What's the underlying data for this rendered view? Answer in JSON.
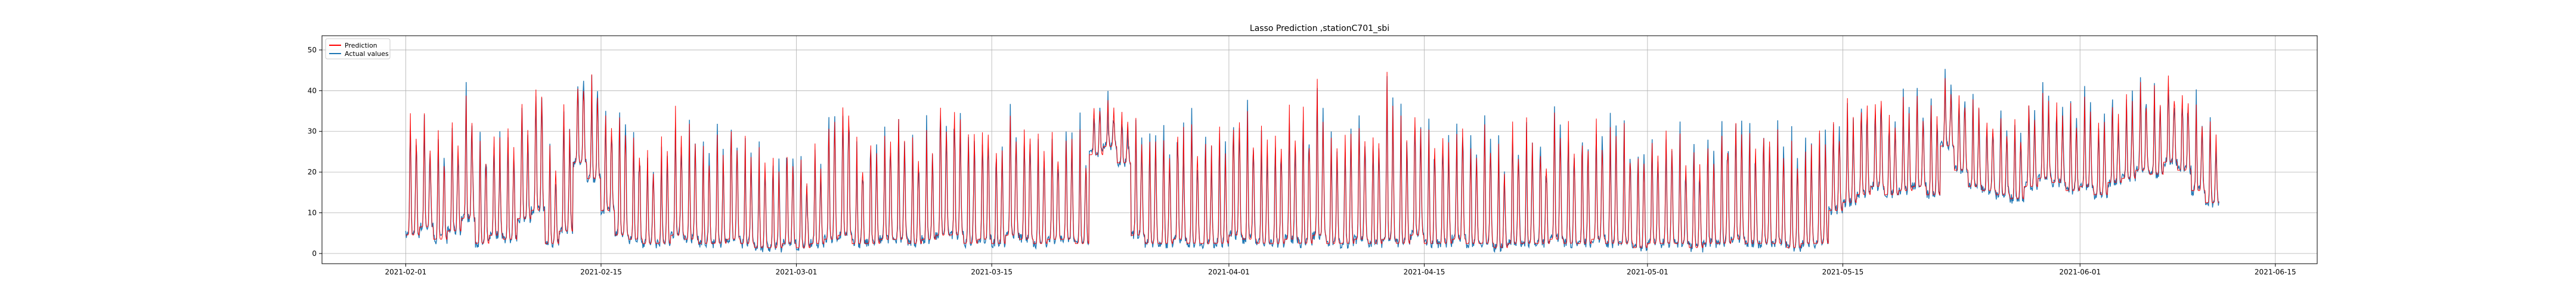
{
  "chart_data": {
    "type": "line",
    "title": "Lasso Prediction ,stationC701_sbi",
    "xlabel": "",
    "ylabel": "",
    "x_range": [
      "2021-01-26",
      "2021-06-18"
    ],
    "ylim": [
      -2.5,
      53.5
    ],
    "x_ticks": [
      "2021-02-01",
      "2021-02-15",
      "2021-03-01",
      "2021-03-15",
      "2021-04-01",
      "2021-04-15",
      "2021-05-01",
      "2021-05-15",
      "2021-06-01",
      "2021-06-15"
    ],
    "y_ticks": [
      0,
      10,
      20,
      30,
      40,
      50
    ],
    "grid": true,
    "legend_position": "top-left",
    "data_start": "2021-02-01",
    "data_end": "2021-06-11",
    "series": [
      {
        "name": "Prediction",
        "color": "#ff0000",
        "daily_mean": [
          16,
          18,
          14,
          17,
          22,
          13,
          15,
          14,
          20,
          24,
          12,
          16,
          30,
          27,
          22,
          16,
          14,
          12,
          13,
          15,
          14,
          12,
          13,
          14,
          12,
          11,
          10,
          12,
          10,
          11,
          14,
          15,
          11,
          12,
          13,
          14,
          12,
          13,
          15,
          16,
          13,
          14,
          12,
          15,
          14,
          12,
          13,
          14,
          12,
          30,
          32,
          28,
          15,
          13,
          12,
          14,
          13,
          12,
          13,
          15,
          14,
          13,
          12,
          14,
          13,
          15,
          12,
          13,
          14,
          12,
          14,
          13,
          15,
          12,
          13,
          14,
          12,
          13,
          11,
          12,
          13,
          12,
          14,
          13,
          12,
          14,
          13,
          12,
          11,
          12,
          13,
          12,
          11,
          12,
          13,
          14,
          12,
          13,
          12,
          11,
          12,
          13,
          22,
          24,
          25,
          26,
          24,
          25,
          26,
          24,
          35,
          30,
          26,
          25,
          24,
          23,
          26,
          28,
          27,
          25,
          26,
          24,
          27,
          28,
          30,
          29,
          32,
          30,
          25,
          22,
          24,
          26,
          25,
          28,
          30,
          32,
          30,
          24,
          22,
          26
        ],
        "daily_peak": [
          38,
          36,
          32,
          35,
          42,
          30,
          34,
          33,
          40,
          46,
          30,
          38,
          47,
          45,
          42,
          38,
          35,
          30,
          32,
          38,
          34,
          30,
          32,
          36,
          30,
          28,
          26,
          30,
          26,
          30,
          40,
          46,
          30,
          32,
          34,
          38,
          32,
          34,
          42,
          44,
          36,
          38,
          32,
          40,
          38,
          32,
          34,
          36,
          32,
          38,
          38,
          36,
          40,
          36,
          34,
          38,
          36,
          32,
          34,
          40,
          38,
          36,
          34,
          40,
          38,
          46,
          34,
          36,
          38,
          34,
          48,
          36,
          40,
          34,
          36,
          38,
          34,
          36,
          30,
          34,
          38,
          32,
          40,
          36,
          34,
          38,
          36,
          34,
          30,
          32,
          36,
          32,
          30,
          34,
          38,
          40,
          34,
          36,
          34,
          30,
          32,
          36,
          36,
          40,
          42,
          44,
          38,
          40,
          42,
          38,
          44,
          42,
          40,
          38,
          36,
          34,
          40,
          42,
          40,
          38,
          40,
          36,
          40,
          42,
          44,
          42,
          46,
          44,
          38,
          34,
          38,
          40,
          38,
          42,
          44,
          46,
          44,
          36,
          32,
          30
        ],
        "daily_low": [
          4,
          6,
          3,
          5,
          8,
          2,
          4,
          3,
          8,
          10,
          2,
          5,
          22,
          18,
          10,
          4,
          3,
          2,
          2,
          4,
          3,
          2,
          2,
          3,
          2,
          1,
          1,
          2,
          1,
          2,
          3,
          4,
          2,
          2,
          3,
          3,
          2,
          3,
          4,
          4,
          2,
          3,
          2,
          4,
          3,
          2,
          3,
          3,
          2,
          24,
          26,
          22,
          4,
          2,
          2,
          3,
          2,
          2,
          2,
          4,
          3,
          2,
          2,
          3,
          2,
          4,
          2,
          2,
          3,
          2,
          3,
          2,
          4,
          2,
          2,
          3,
          2,
          2,
          1,
          2,
          2,
          2,
          3,
          2,
          2,
          3,
          2,
          2,
          1,
          2,
          2,
          2,
          1,
          2,
          2,
          3,
          2,
          2,
          2,
          1,
          2,
          2,
          10,
          12,
          14,
          16,
          14,
          15,
          16,
          14,
          26,
          20,
          16,
          15,
          14,
          13,
          16,
          18,
          17,
          15,
          16,
          14,
          17,
          18,
          20,
          19,
          22,
          20,
          15,
          12,
          14,
          16,
          15,
          18,
          20,
          22,
          20,
          14,
          12,
          10
        ]
      },
      {
        "name": "Actual values",
        "color": "#1f77b4"
      }
    ]
  }
}
